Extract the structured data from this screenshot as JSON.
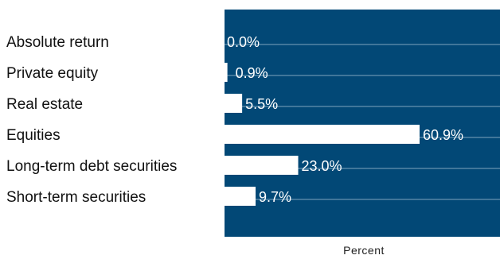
{
  "colors": {
    "panel": "#024876",
    "bar": "#ffffff",
    "gridline": "#7fa4bd",
    "label_text": "#111111",
    "value_text": "#ffffff"
  },
  "chart_data": {
    "type": "bar",
    "orientation": "horizontal",
    "categories": [
      "Absolute return",
      "Private equity",
      "Real estate",
      "Equities",
      "Long-term debt securities",
      "Short-term securities"
    ],
    "values": [
      0.0,
      0.9,
      5.5,
      60.9,
      23.0,
      9.7
    ],
    "value_labels": [
      "0.0%",
      "0.9%",
      "5.5%",
      "60.9%",
      "23.0%",
      "9.7%"
    ],
    "title": "",
    "xlabel": "Percent",
    "ylabel": "",
    "xlim": [
      0,
      60.9
    ],
    "grid": true,
    "legend": "none"
  }
}
